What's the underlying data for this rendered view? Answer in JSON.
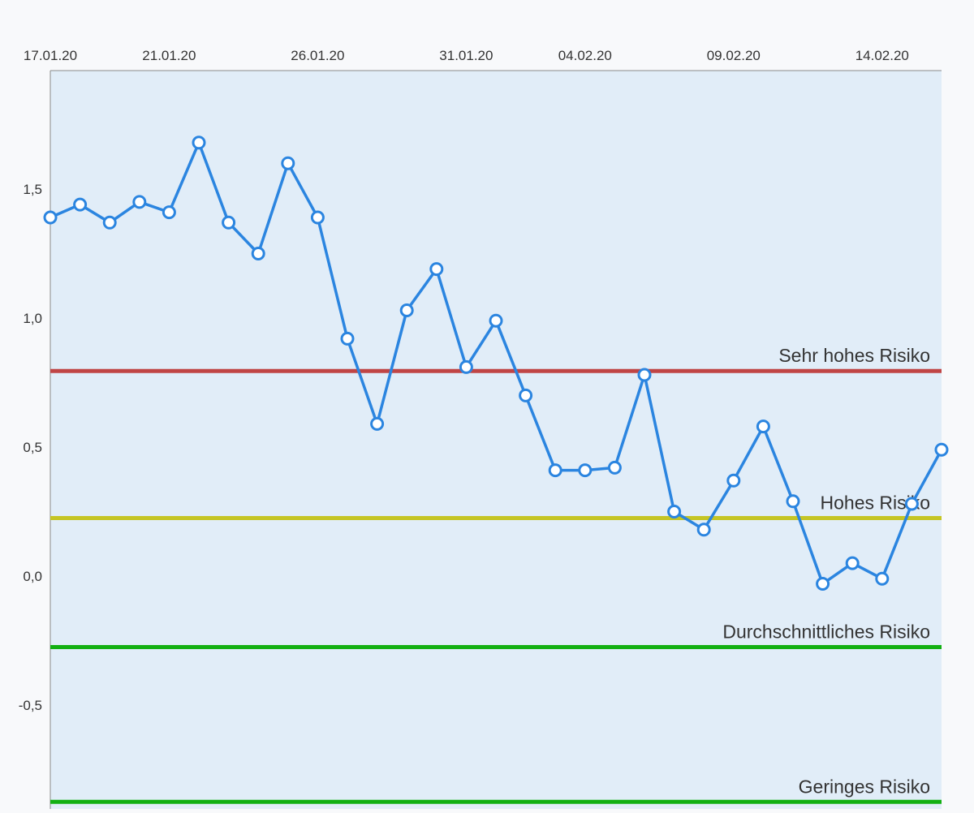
{
  "chart_data": {
    "type": "line",
    "title": "",
    "xlabel": "",
    "ylabel": "",
    "x_start": "2020-01-17",
    "x_ticks": [
      "17.01.20",
      "21.01.20",
      "26.01.20",
      "31.01.20",
      "04.02.20",
      "09.02.20",
      "14.02.20"
    ],
    "y_ticks": [
      "-0,5",
      "0,0",
      "0,5",
      "1,0",
      "1,5"
    ],
    "ylim": [
      -0.88,
      1.97
    ],
    "grid": false,
    "x": [
      "2020-01-17",
      "2020-01-18",
      "2020-01-19",
      "2020-01-20",
      "2020-01-21",
      "2020-01-22",
      "2020-01-23",
      "2020-01-24",
      "2020-01-25",
      "2020-01-26",
      "2020-01-27",
      "2020-01-28",
      "2020-01-29",
      "2020-01-30",
      "2020-01-31",
      "2020-02-01",
      "2020-02-02",
      "2020-02-03",
      "2020-02-04",
      "2020-02-05",
      "2020-02-06",
      "2020-02-07",
      "2020-02-08",
      "2020-02-09",
      "2020-02-10",
      "2020-02-11",
      "2020-02-12",
      "2020-02-13",
      "2020-02-14",
      "2020-02-15",
      "2020-02-16"
    ],
    "series": [
      {
        "values": [
          1.39,
          1.44,
          1.37,
          1.45,
          1.41,
          1.68,
          1.37,
          1.25,
          1.6,
          1.39,
          0.92,
          0.59,
          1.03,
          1.19,
          0.81,
          0.99,
          0.7,
          0.41,
          0.41,
          0.42,
          0.78,
          0.25,
          0.18,
          0.37,
          0.58,
          0.29,
          -0.03,
          0.05,
          -0.01,
          0.28,
          0.49
        ],
        "color": "#2b85e0"
      }
    ],
    "reference_lines": [
      {
        "label": "Sehr hohes Risiko",
        "value": 0.795,
        "color": "#c04545"
      },
      {
        "label": "Hohes Risiko",
        "value": 0.225,
        "color": "#c5c524"
      },
      {
        "label": "Durchschnittliches Risiko",
        "value": -0.275,
        "color": "#12b012"
      },
      {
        "label": "Geringes Risiko",
        "value": -0.875,
        "color": "#12b012"
      }
    ],
    "plot_background": "#e1edf8"
  }
}
